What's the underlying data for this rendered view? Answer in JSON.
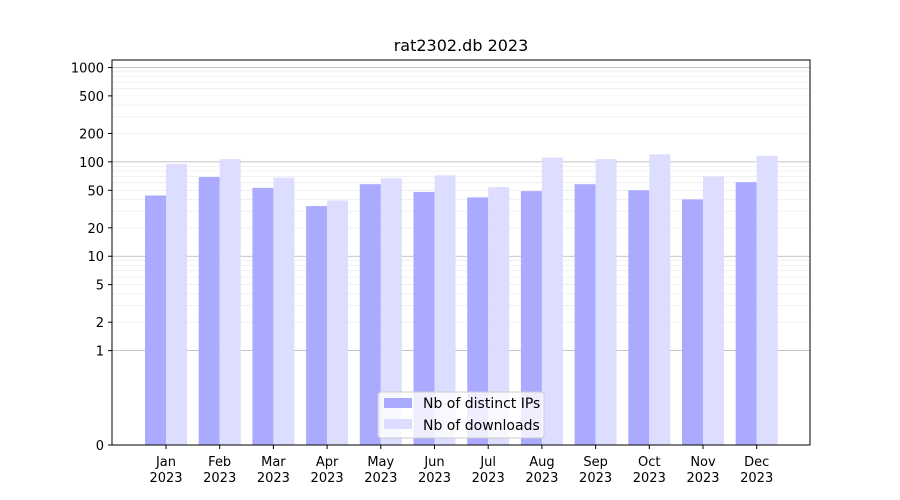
{
  "chart_data": {
    "type": "bar",
    "title": "rat2302.db 2023",
    "xlabel": "",
    "ylabel": "",
    "yscale": "symlog",
    "ylim": [
      0,
      1200
    ],
    "yticks": [
      "0",
      "1",
      "2",
      "5",
      "10",
      "20",
      "50",
      "100",
      "200",
      "500",
      "1000"
    ],
    "categories": [
      "Jan\n2023",
      "Feb\n2023",
      "Mar\n2023",
      "Apr\n2023",
      "May\n2023",
      "Jun\n2023",
      "Jul\n2023",
      "Aug\n2023",
      "Sep\n2023",
      "Oct\n2023",
      "Nov\n2023",
      "Dec\n2023"
    ],
    "series": [
      {
        "name": "Nb of distinct IPs",
        "color": "#aaaaff",
        "values": [
          44,
          69,
          53,
          34,
          58,
          48,
          42,
          49,
          58,
          50,
          40,
          61
        ]
      },
      {
        "name": "Nb of downloads",
        "color": "#ddddff",
        "values": [
          95,
          107,
          68,
          39,
          67,
          72,
          54,
          111,
          107,
          120,
          70,
          116
        ]
      }
    ],
    "grid": true,
    "legend_position": "bottom-center"
  }
}
